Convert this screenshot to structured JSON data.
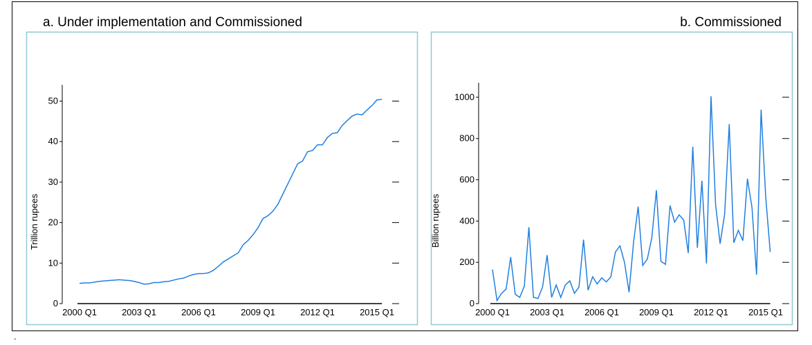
{
  "chart_data": [
    {
      "type": "line",
      "title": "a. Under implementation and Commissioned",
      "y_label": "Trillion rupees",
      "categories": [
        "2000 Q1",
        null,
        null,
        null,
        null,
        null,
        null,
        null,
        null,
        null,
        null,
        null,
        "2003 Q1",
        null,
        null,
        null,
        null,
        null,
        null,
        null,
        null,
        null,
        null,
        null,
        "2006 Q1",
        null,
        null,
        null,
        null,
        null,
        null,
        null,
        null,
        null,
        null,
        null,
        "2009 Q1",
        null,
        null,
        null,
        null,
        null,
        null,
        null,
        null,
        null,
        null,
        null,
        "2012 Q1",
        null,
        null,
        null,
        null,
        null,
        null,
        null,
        null,
        null,
        null,
        null,
        "2015 Q1",
        null
      ],
      "values": [
        5.0,
        5.1,
        5.1,
        5.3,
        5.5,
        5.6,
        5.7,
        5.8,
        5.9,
        5.8,
        5.7,
        5.5,
        5.2,
        4.8,
        4.9,
        5.2,
        5.2,
        5.4,
        5.5,
        5.8,
        6.1,
        6.3,
        6.8,
        7.2,
        7.4,
        7.4,
        7.6,
        8.2,
        9.2,
        10.3,
        11.0,
        11.8,
        12.5,
        14.5,
        15.6,
        17.0,
        18.7,
        21.0,
        21.7,
        22.8,
        24.5,
        27.0,
        29.5,
        32.0,
        34.5,
        35.2,
        37.5,
        37.8,
        39.2,
        39.2,
        41.0,
        42.0,
        42.2,
        44.0,
        45.2,
        46.3,
        46.8,
        46.6,
        47.8,
        48.9,
        50.3,
        50.4
      ],
      "color": "#1f7fe0",
      "ylim": [
        0,
        54
      ],
      "yticks": [
        0,
        10,
        20,
        30,
        40,
        50
      ]
    },
    {
      "type": "line",
      "title": "b. Commissioned",
      "y_label": "Billion rupees",
      "categories": [
        "2000 Q1",
        null,
        null,
        null,
        null,
        null,
        null,
        null,
        null,
        null,
        null,
        null,
        "2003 Q1",
        null,
        null,
        null,
        null,
        null,
        null,
        null,
        null,
        null,
        null,
        null,
        "2006 Q1",
        null,
        null,
        null,
        null,
        null,
        null,
        null,
        null,
        null,
        null,
        null,
        "2009 Q1",
        null,
        null,
        null,
        null,
        null,
        null,
        null,
        null,
        null,
        null,
        null,
        "2012 Q1",
        null,
        null,
        null,
        null,
        null,
        null,
        null,
        null,
        null,
        null,
        null,
        "2015 Q1",
        null
      ],
      "values": [
        165,
        15,
        50,
        70,
        225,
        45,
        30,
        85,
        370,
        30,
        25,
        80,
        235,
        30,
        90,
        30,
        90,
        110,
        50,
        80,
        310,
        65,
        130,
        95,
        125,
        105,
        130,
        250,
        280,
        200,
        55,
        300,
        470,
        185,
        215,
        320,
        550,
        205,
        190,
        475,
        395,
        430,
        405,
        245,
        760,
        270,
        595,
        195,
        1005,
        480,
        290,
        435,
        870,
        295,
        355,
        305,
        605,
        465,
        140,
        940,
        520,
        250
      ],
      "color": "#1f7fe0",
      "ylim": [
        0,
        1070
      ],
      "yticks": [
        0,
        200,
        400,
        600,
        800,
        1000
      ]
    }
  ],
  "footnote": "."
}
